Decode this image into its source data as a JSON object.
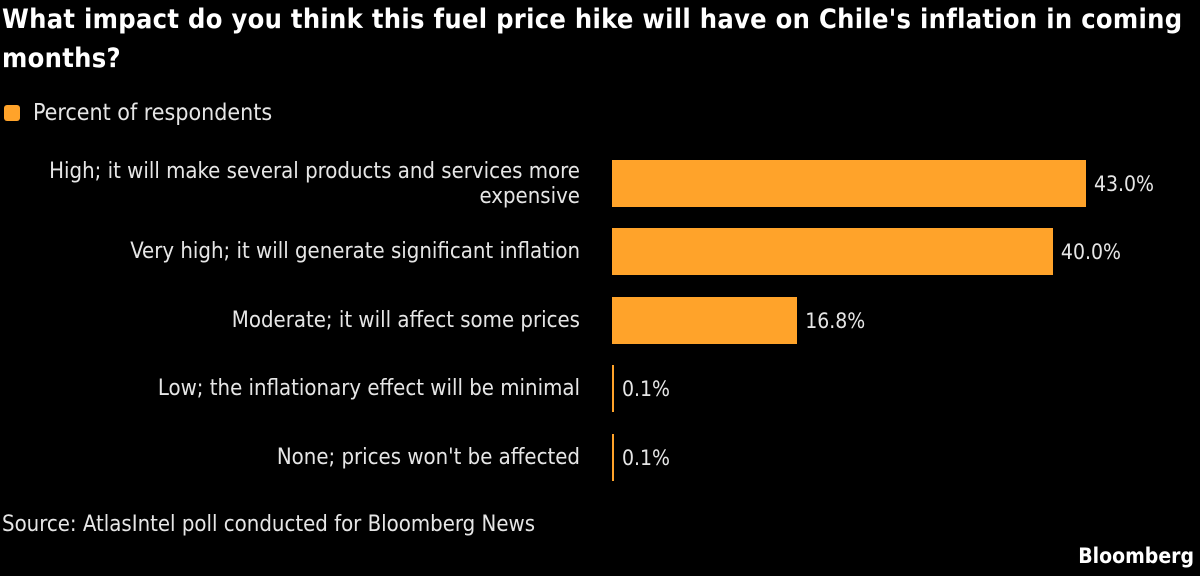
{
  "chart_data": {
    "type": "bar",
    "orientation": "horizontal",
    "title": "What impact do you think this fuel price hike will have on Chile's inflation in coming months?",
    "legend": [
      "Percent of respondents"
    ],
    "categories": [
      "High; it will make several products and services more expensive",
      "Very high; it will generate significant inflation",
      "Moderate; it will affect some prices",
      "Low; the inflationary effect will be minimal",
      "None; prices won't be affected"
    ],
    "values": [
      43.0,
      40.0,
      16.8,
      0.1,
      0.1
    ],
    "value_labels": [
      "43.0%",
      "40.0%",
      "16.8%",
      "0.1%",
      "0.1%"
    ],
    "xlim": [
      0,
      43
    ],
    "color": "#FFA32A",
    "source": "Source: AtlasIntel poll conducted for Bloomberg News",
    "brand": "Bloomberg"
  }
}
